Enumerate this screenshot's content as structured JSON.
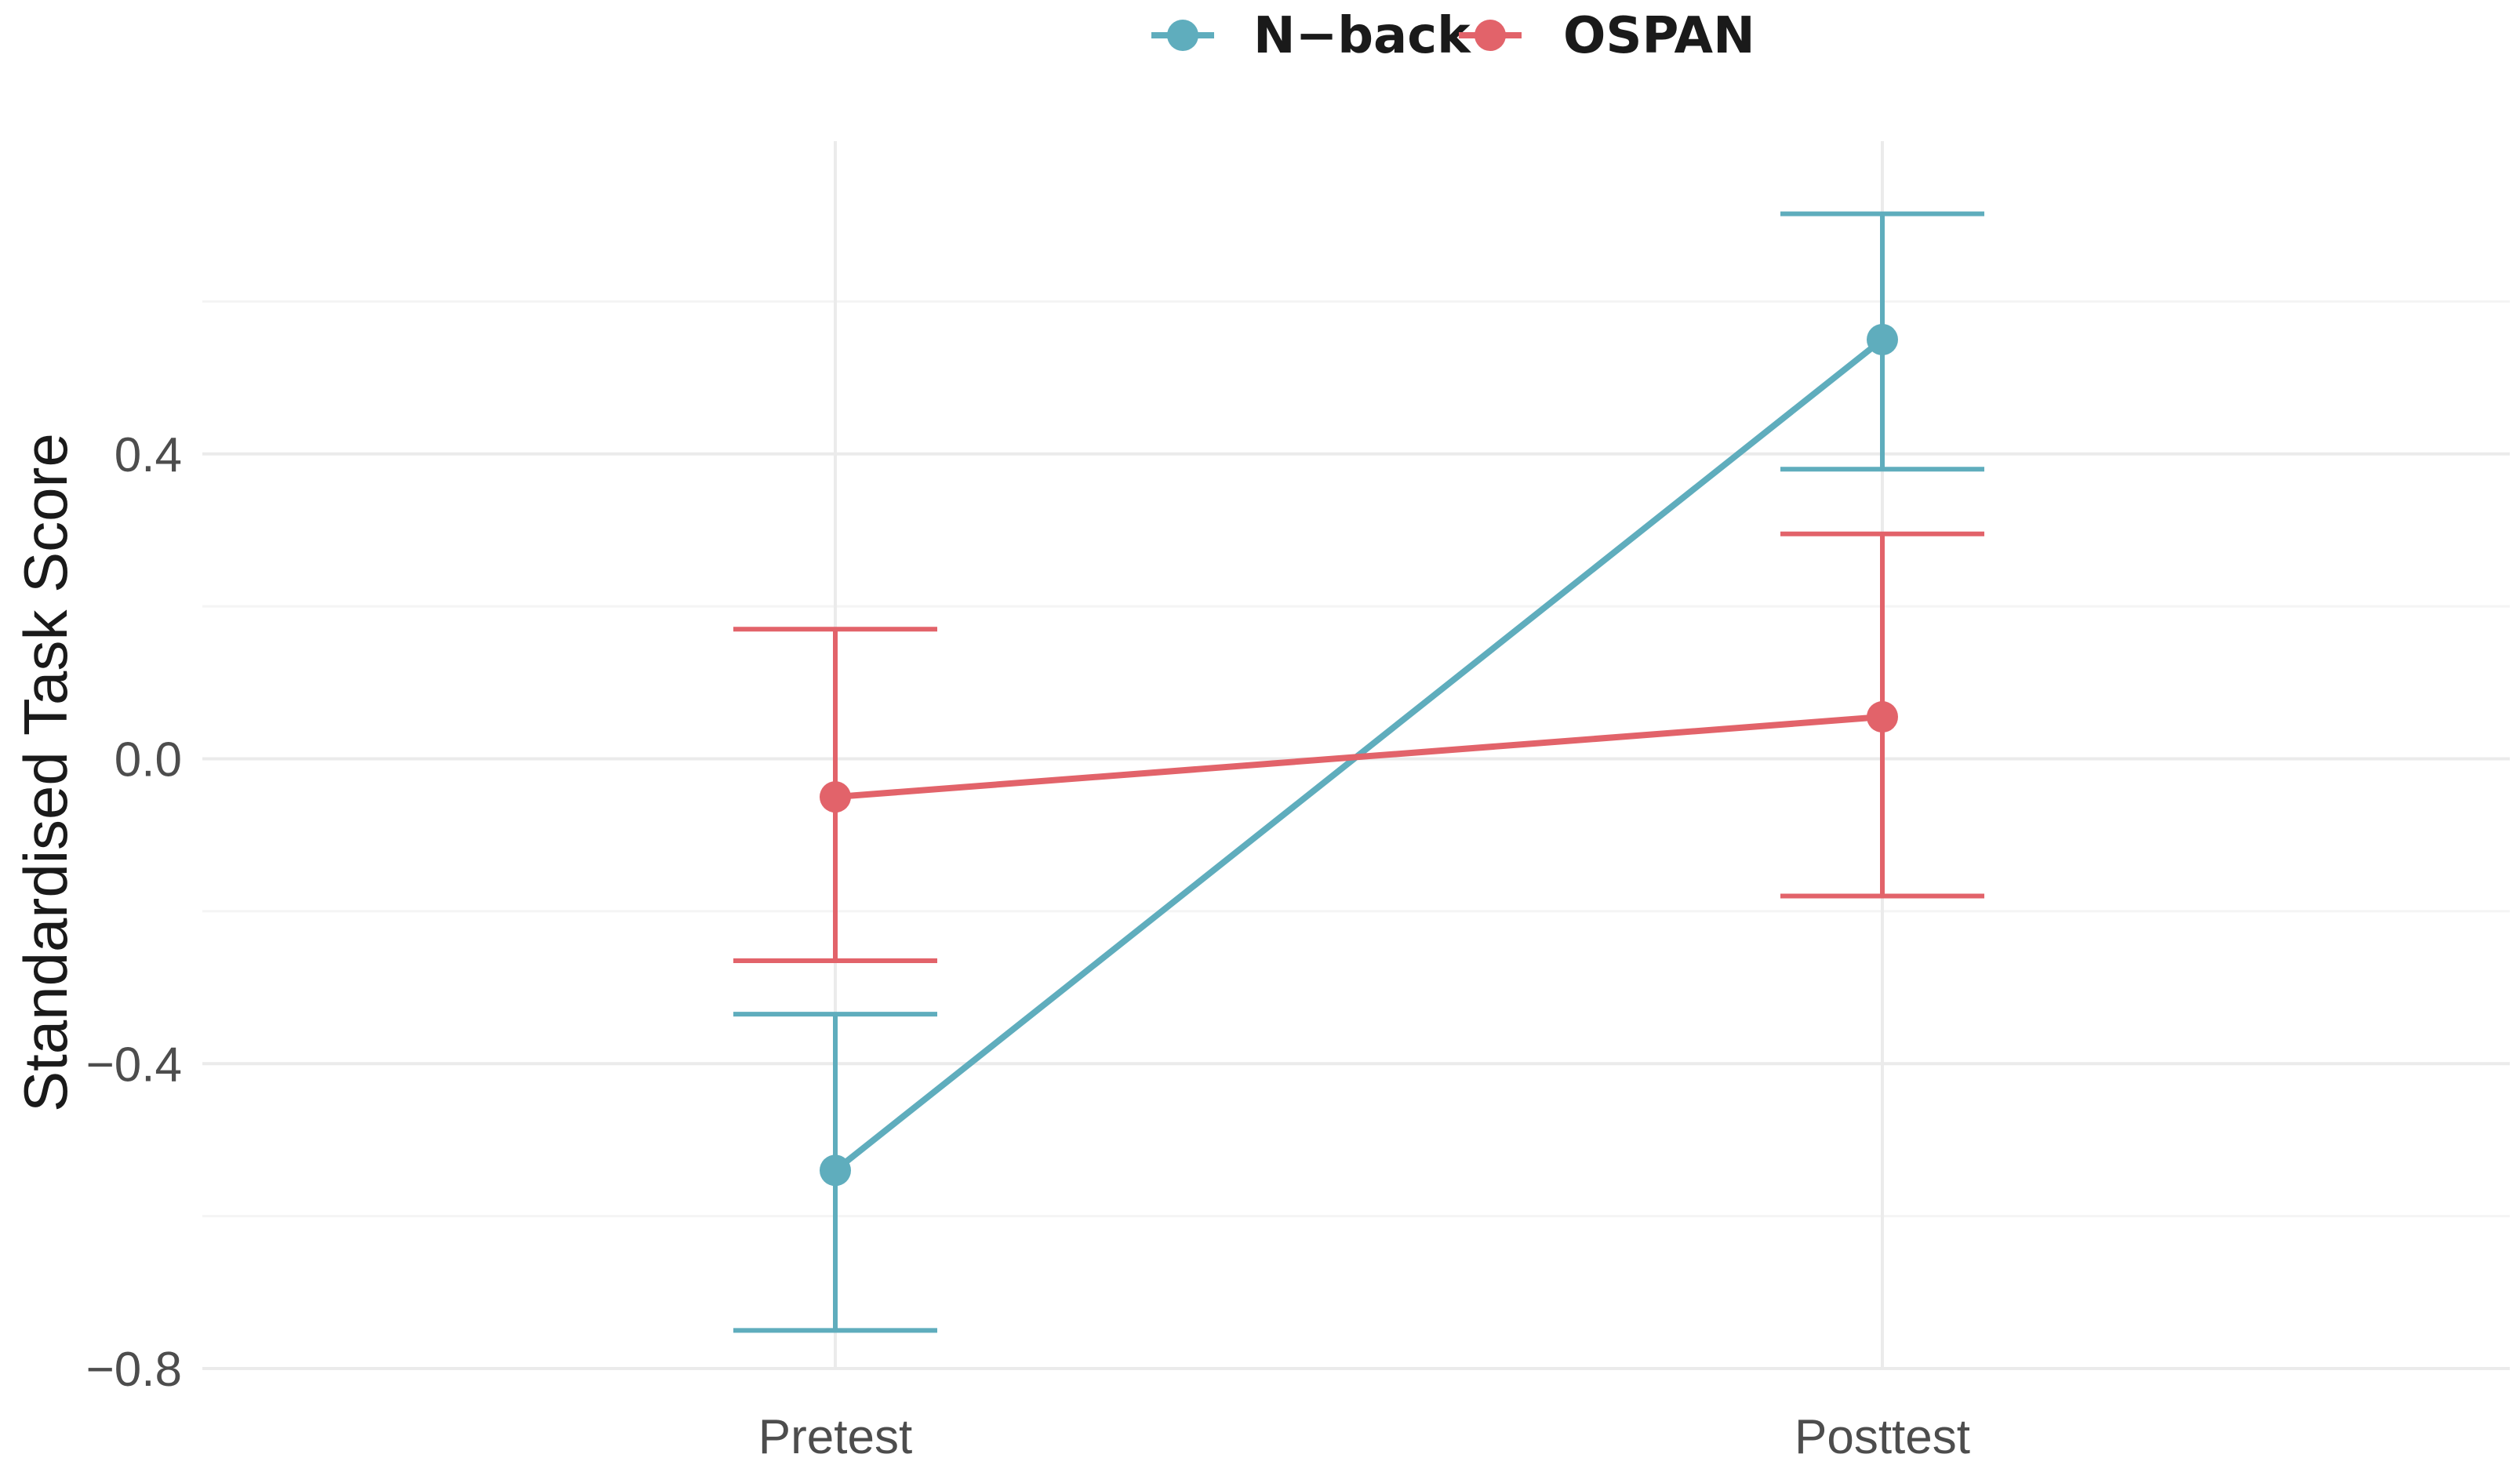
{
  "chart_data": {
    "type": "line",
    "title": "",
    "xlabel": "",
    "ylabel": "Standardised Task Score",
    "categories": [
      "Pretest",
      "Posttest"
    ],
    "ylim": [
      -0.8,
      0.8
    ],
    "yticks": [
      -0.8,
      -0.4,
      0.0,
      0.4
    ],
    "ytick_labels": [
      "−0.8",
      "−0.4",
      "0.0",
      "0.4"
    ],
    "grid": true,
    "legend_position": "top",
    "series": [
      {
        "name": "N−back",
        "color": "#5fadbd",
        "values": [
          -0.54,
          0.55
        ],
        "error_low": [
          -0.75,
          0.38
        ],
        "error_high": [
          -0.335,
          0.715
        ]
      },
      {
        "name": "OSPAN",
        "color": "#e2636a",
        "values": [
          -0.05,
          0.055
        ],
        "error_low": [
          -0.265,
          -0.18
        ],
        "error_high": [
          0.17,
          0.295
        ]
      }
    ]
  }
}
